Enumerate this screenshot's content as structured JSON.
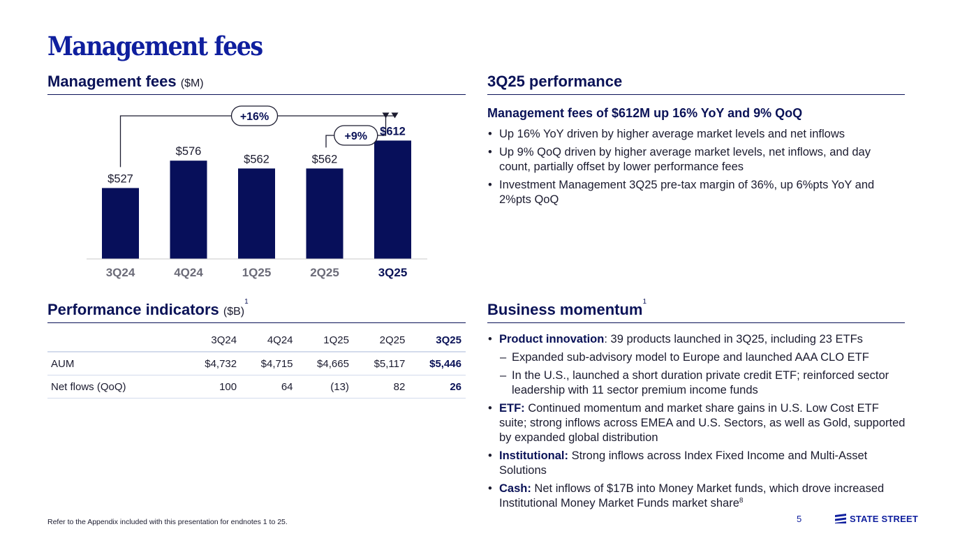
{
  "page_title": "Management fees",
  "left_top": {
    "heading": "Management fees",
    "unit": "($M)"
  },
  "chart_data": {
    "type": "bar",
    "categories": [
      "3Q24",
      "4Q24",
      "1Q25",
      "2Q25",
      "3Q25"
    ],
    "values": [
      527,
      576,
      562,
      562,
      612
    ],
    "value_labels": [
      "$527",
      "$576",
      "$562",
      "$562",
      "$612"
    ],
    "highlight_index": 4,
    "bar_color": "#070f5a",
    "annotations": [
      {
        "label": "+16%",
        "from": "3Q24",
        "to": "3Q25"
      },
      {
        "label": "+9%",
        "from": "2Q25",
        "to": "3Q25"
      }
    ],
    "title": "Management fees",
    "ylabel": "($M)"
  },
  "right_top": {
    "heading": "3Q25 performance",
    "subheading": "Management fees of $612M up 16% YoY and 9% QoQ",
    "bullets": [
      "Up 16% YoY driven by higher average market levels and net inflows",
      "Up 9% QoQ driven by higher average market levels, net inflows, and day count, partially offset by lower performance fees",
      "Investment Management 3Q25 pre-tax margin of 36%, up 6%pts YoY and 2%pts QoQ"
    ]
  },
  "left_bottom": {
    "heading": "Performance indicators",
    "unit": "($B)",
    "sup": "1",
    "columns": [
      "3Q24",
      "4Q24",
      "1Q25",
      "2Q25",
      "3Q25"
    ],
    "rows": [
      {
        "label": "AUM",
        "values": [
          "$4,732",
          "$4,715",
          "$4,665",
          "$5,117",
          "$5,446"
        ]
      },
      {
        "label": "Net flows (QoQ)",
        "values": [
          "100",
          "64",
          "(13)",
          "82",
          "26"
        ]
      }
    ]
  },
  "right_bottom": {
    "heading": "Business momentum",
    "sup": "1",
    "b1_bold": "Product innovation",
    "b1_text": ": 39 products launched in 3Q25, including 23 ETFs",
    "d1": "Expanded sub-advisory model to Europe and launched AAA CLO ETF",
    "d2": "In the U.S., launched a short duration private credit ETF; reinforced sector leadership with 11 sector premium income funds",
    "b2_bold": "ETF:",
    "b2_text": " Continued momentum and market share gains in U.S. Low Cost ETF suite; strong inflows across EMEA and U.S. Sectors, as well as Gold, supported by expanded global distribution",
    "b3_bold": "Institutional:",
    "b3_text": " Strong inflows across Index Fixed Income and Multi-Asset Solutions",
    "b4_bold": "Cash:",
    "b4_text": " Net inflows of $17B into Money Market funds, which drove increased Institutional Money Market Funds market share",
    "b4_sup": "8"
  },
  "footer": {
    "note": "Refer to the Appendix included with this presentation for endnotes 1 to 25.",
    "page": "5",
    "brand": "STATE STREET"
  }
}
